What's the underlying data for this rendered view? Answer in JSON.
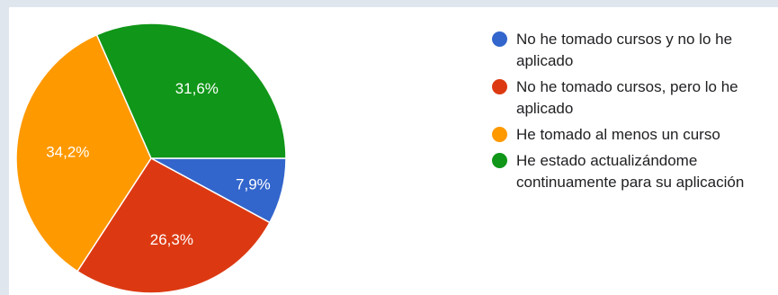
{
  "chart_data": {
    "type": "pie",
    "categories": [
      "No he tomado cursos y no lo he aplicado",
      "No he tomado cursos, pero lo he aplicado",
      "He tomado al menos un curso",
      "He estado actualizándome continuamente para su aplicación"
    ],
    "values": [
      7.9,
      26.3,
      34.2,
      31.6
    ],
    "data_labels": [
      "7,9%",
      "26,3%",
      "34,2%",
      "31,6%"
    ],
    "colors": [
      "#3366cc",
      "#dc3912",
      "#ff9900",
      "#109618"
    ],
    "legend_position": "right"
  },
  "legend": [
    {
      "color": "#3366cc",
      "lines": [
        "No he tomado cursos y no lo he",
        "aplicado"
      ]
    },
    {
      "color": "#dc3912",
      "lines": [
        "No he tomado cursos, pero lo he",
        "aplicado"
      ]
    },
    {
      "color": "#ff9900",
      "lines": [
        "He tomado al menos un curso"
      ]
    },
    {
      "color": "#109618",
      "lines": [
        "He estado actualizándome",
        "continuamente para su aplicación"
      ]
    }
  ]
}
